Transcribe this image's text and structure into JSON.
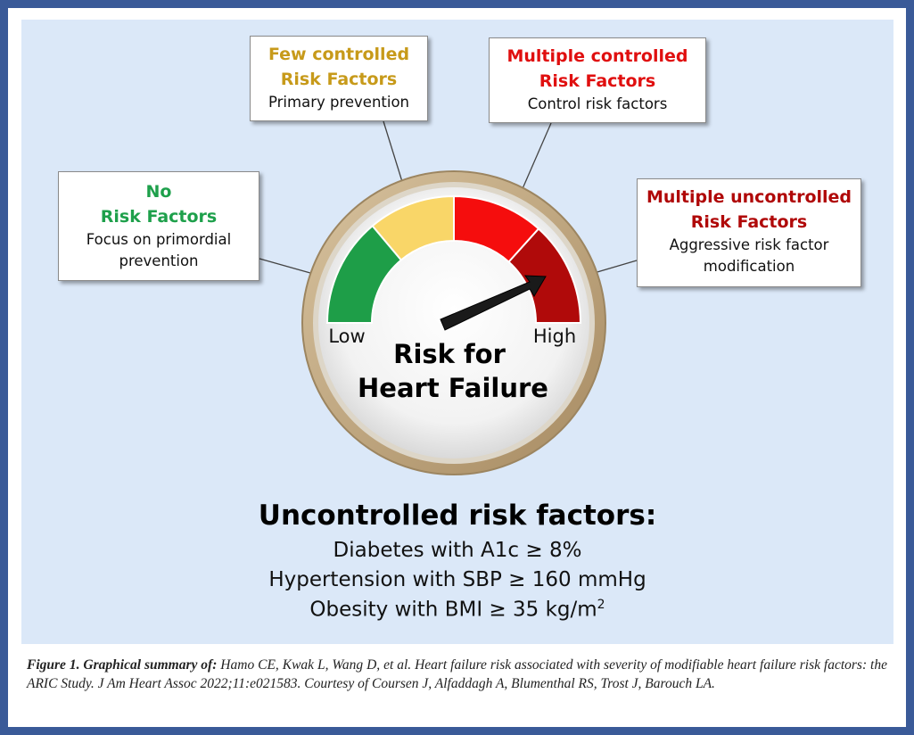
{
  "gauge": {
    "title_line1": "Risk for",
    "title_line2": "Heart Failure",
    "low_label": "Low",
    "high_label": "High",
    "colors": {
      "green": "#1e9e48",
      "yellow": "#f9d668",
      "red": "#f50d0d",
      "dark_red": "#b00a0a",
      "rim": "#c2a77f"
    }
  },
  "boxes": {
    "none": {
      "title1": "No",
      "title2": "Risk Factors",
      "sub1": "Focus on primordial",
      "sub2": "prevention"
    },
    "few": {
      "title1": "Few controlled",
      "title2": "Risk Factors",
      "sub1": "Primary prevention"
    },
    "multi_controlled": {
      "title1": "Multiple controlled",
      "title2": "Risk Factors",
      "sub1": "Control risk factors"
    },
    "multi_uncontrolled": {
      "title1": "Multiple uncontrolled",
      "title2": "Risk Factors",
      "sub1": "Aggressive risk factor",
      "sub2": "modification"
    }
  },
  "uncontrolled": {
    "heading": "Uncontrolled risk factors:",
    "item1": "Diabetes with A1c ≥ 8%",
    "item2": "Hypertension with SBP ≥ 160 mmHg",
    "item3": "Obesity with BMI ≥ 35 kg/m",
    "item3_sup": "2"
  },
  "caption": {
    "label": "Figure 1. Graphical summary of:",
    "text": " Hamo CE, Kwak L, Wang D, et al. Heart failure risk associated with severity of modifiable heart failure risk factors: the ARIC Study. J Am Heart Assoc 2022;11:e021583. Courtesy of Coursen J, Alfaddagh A, Blumenthal RS, Trost J, Barouch LA."
  }
}
